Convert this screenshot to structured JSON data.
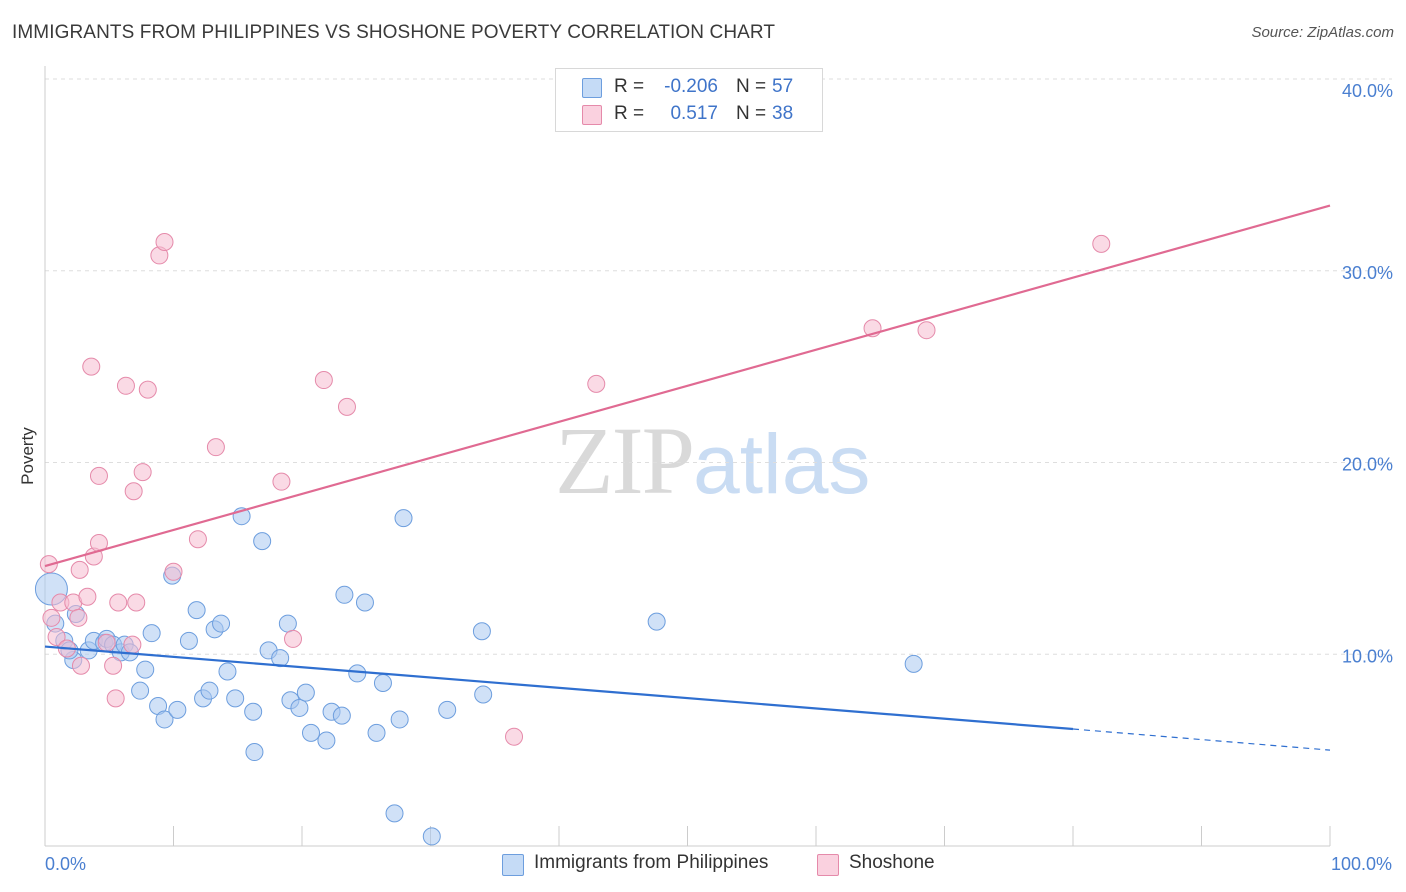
{
  "header": {
    "title": "IMMIGRANTS FROM PHILIPPINES VS SHOSHONE POVERTY CORRELATION CHART",
    "source": "Source: ZipAtlas.com"
  },
  "watermark": {
    "zip": "ZIP",
    "atlas": "atlas"
  },
  "legend": {
    "rows": [
      {
        "r_label": "R =",
        "r_value": "-0.206",
        "n_label": "N =",
        "n_value": "57"
      },
      {
        "r_label": "R =",
        "r_value": "0.517",
        "n_label": "N =",
        "n_value": "38"
      }
    ]
  },
  "bottom_legend": {
    "items": [
      {
        "label": "Immigrants from Philippines"
      },
      {
        "label": "Shoshone"
      }
    ]
  },
  "colors": {
    "blue_fill": "#a9c8f0",
    "blue_stroke": "#6d9ede",
    "blue_line": "#2f6fd0",
    "pink_fill": "#f6bccf",
    "pink_stroke": "#e58aaa",
    "pink_line": "#e06a92",
    "grid": "#dedede",
    "tick_text": "#4a7fd0"
  },
  "chart_data": {
    "type": "scatter",
    "title": "IMMIGRANTS FROM PHILIPPINES VS SHOSHONE POVERTY CORRELATION CHART",
    "ylabel": "Poverty",
    "xlabel": "",
    "xlim": [
      0,
      100
    ],
    "ylim": [
      0,
      40
    ],
    "x_ticks": [
      "0.0%",
      "100.0%"
    ],
    "y_ticks": [
      {
        "value": 10,
        "label": "10.0%"
      },
      {
        "value": 20,
        "label": "20.0%"
      },
      {
        "value": 30,
        "label": "30.0%"
      },
      {
        "value": 40,
        "label": "40.0%"
      }
    ],
    "grid": "horizontal dashed",
    "legend_placement": "top-center",
    "series": [
      {
        "name": "Immigrants from Philippines",
        "color": "#6d9ede",
        "trend": {
          "x0": 0,
          "y0": 10.4,
          "x1": 80,
          "y1": 6.1,
          "dashed_to_x": 100,
          "dashed_to_y": 5.0
        },
        "points": [
          [
            0.5,
            13.4
          ],
          [
            0.8,
            11.6
          ],
          [
            1.5,
            10.7
          ],
          [
            2.2,
            9.7
          ],
          [
            2.4,
            12.1
          ],
          [
            3.4,
            10.2
          ],
          [
            3.8,
            10.7
          ],
          [
            4.6,
            10.6
          ],
          [
            4.8,
            10.8
          ],
          [
            5.3,
            10.5
          ],
          [
            5.9,
            10.1
          ],
          [
            6.2,
            10.5
          ],
          [
            6.6,
            10.1
          ],
          [
            7.4,
            8.1
          ],
          [
            7.8,
            9.2
          ],
          [
            8.3,
            11.1
          ],
          [
            8.8,
            7.3
          ],
          [
            9.3,
            6.6
          ],
          [
            9.9,
            14.1
          ],
          [
            10.3,
            7.1
          ],
          [
            11.2,
            10.7
          ],
          [
            11.8,
            12.3
          ],
          [
            12.3,
            7.7
          ],
          [
            12.8,
            8.1
          ],
          [
            13.2,
            11.3
          ],
          [
            13.7,
            11.6
          ],
          [
            14.2,
            9.1
          ],
          [
            14.8,
            7.7
          ],
          [
            15.3,
            17.2
          ],
          [
            16.2,
            7.0
          ],
          [
            16.3,
            4.9
          ],
          [
            16.9,
            15.9
          ],
          [
            17.4,
            10.2
          ],
          [
            18.3,
            9.8
          ],
          [
            18.9,
            11.6
          ],
          [
            19.1,
            7.6
          ],
          [
            19.8,
            7.2
          ],
          [
            20.3,
            8.0
          ],
          [
            20.7,
            5.9
          ],
          [
            21.9,
            5.5
          ],
          [
            22.3,
            7.0
          ],
          [
            23.1,
            6.8
          ],
          [
            23.3,
            13.1
          ],
          [
            24.3,
            9.0
          ],
          [
            24.9,
            12.7
          ],
          [
            25.8,
            5.9
          ],
          [
            26.3,
            8.5
          ],
          [
            27.6,
            6.6
          ],
          [
            27.2,
            1.7
          ],
          [
            27.9,
            17.1
          ],
          [
            30.1,
            0.5
          ],
          [
            31.3,
            7.1
          ],
          [
            34.1,
            7.9
          ],
          [
            34.0,
            11.2
          ],
          [
            47.6,
            11.7
          ],
          [
            67.6,
            9.5
          ],
          [
            1.9,
            10.2
          ]
        ]
      },
      {
        "name": "Shoshone",
        "color": "#e58aaa",
        "trend": {
          "x0": 0,
          "y0": 14.6,
          "x1": 100,
          "y1": 33.4
        },
        "points": [
          [
            0.3,
            14.7
          ],
          [
            0.5,
            11.9
          ],
          [
            0.9,
            10.9
          ],
          [
            1.2,
            12.7
          ],
          [
            1.7,
            10.3
          ],
          [
            2.2,
            12.7
          ],
          [
            2.6,
            11.9
          ],
          [
            2.8,
            9.4
          ],
          [
            2.7,
            14.4
          ],
          [
            3.3,
            13.0
          ],
          [
            3.6,
            25.0
          ],
          [
            3.8,
            15.1
          ],
          [
            4.2,
            15.8
          ],
          [
            4.2,
            19.3
          ],
          [
            4.8,
            10.6
          ],
          [
            5.3,
            9.4
          ],
          [
            5.5,
            7.7
          ],
          [
            5.7,
            12.7
          ],
          [
            6.3,
            24.0
          ],
          [
            6.9,
            18.5
          ],
          [
            6.8,
            10.5
          ],
          [
            7.1,
            12.7
          ],
          [
            7.6,
            19.5
          ],
          [
            8.0,
            23.8
          ],
          [
            8.9,
            30.8
          ],
          [
            9.3,
            31.5
          ],
          [
            10.0,
            14.3
          ],
          [
            11.9,
            16.0
          ],
          [
            13.3,
            20.8
          ],
          [
            18.4,
            19.0
          ],
          [
            19.3,
            10.8
          ],
          [
            21.7,
            24.3
          ],
          [
            23.5,
            22.9
          ],
          [
            36.5,
            5.7
          ],
          [
            42.9,
            24.1
          ],
          [
            64.4,
            27.0
          ],
          [
            68.6,
            26.9
          ],
          [
            82.2,
            31.4
          ]
        ]
      }
    ]
  }
}
